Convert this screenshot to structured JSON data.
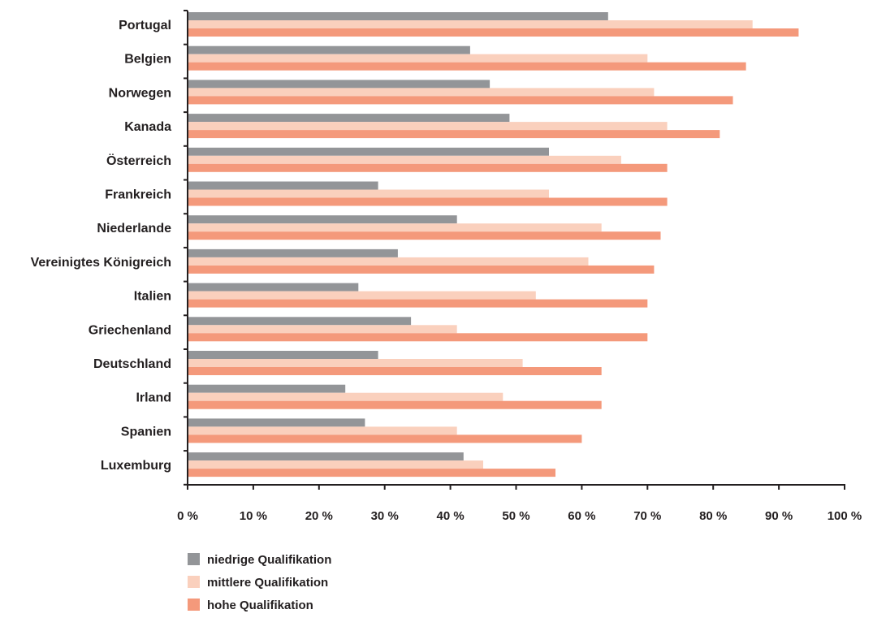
{
  "chart_data": {
    "type": "bar",
    "orientation": "horizontal",
    "categories": [
      "Portugal",
      "Belgien",
      "Norwegen",
      "Kanada",
      "Österreich",
      "Frankreich",
      "Niederlande",
      "Vereinigtes Königreich",
      "Italien",
      "Griechenland",
      "Deutschland",
      "Irland",
      "Spanien",
      "Luxemburg"
    ],
    "series": [
      {
        "name": "niedrige Qualifikation",
        "color": "#939598",
        "values": [
          64,
          43,
          46,
          49,
          55,
          29,
          41,
          32,
          26,
          34,
          29,
          24,
          27,
          42
        ]
      },
      {
        "name": "mittlere Qualifikation",
        "color": "#fad0bd",
        "values": [
          86,
          70,
          71,
          73,
          66,
          55,
          63,
          61,
          53,
          41,
          51,
          48,
          41,
          45
        ]
      },
      {
        "name": "hohe Qualifikation",
        "color": "#f4997b",
        "values": [
          93,
          85,
          83,
          81,
          73,
          73,
          72,
          71,
          70,
          70,
          63,
          63,
          60,
          56
        ]
      }
    ],
    "xlim": [
      0,
      100
    ],
    "xticks": [
      "0 %",
      "10 %",
      "20 %",
      "30 %",
      "40 %",
      "50 %",
      "60 %",
      "70 %",
      "80 %",
      "90 %",
      "100 %"
    ],
    "legend_position": "bottom-left",
    "grid": false
  }
}
